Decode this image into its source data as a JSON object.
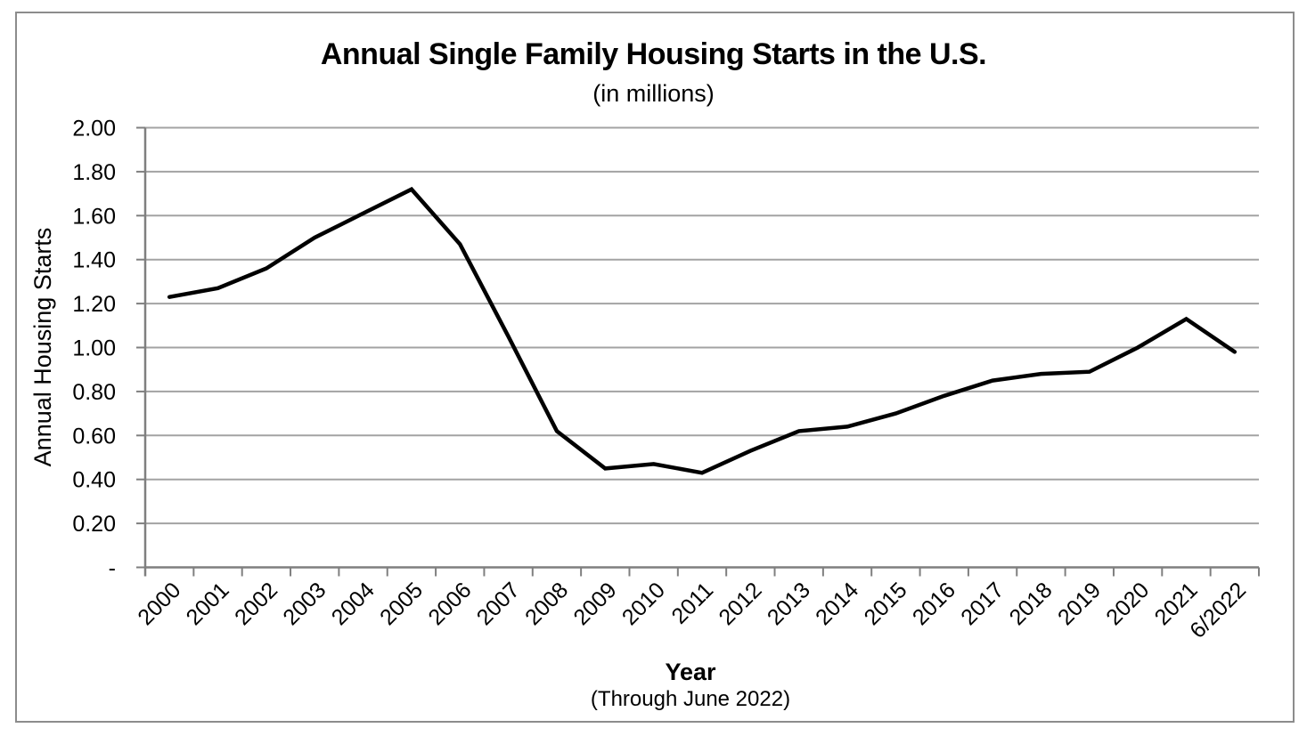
{
  "chart_data": {
    "type": "line",
    "title": "Annual Single Family Housing Starts in the U.S.",
    "subtitle": "(in millions)",
    "xlabel": "Year",
    "xlabel_note": "(Through June 2022)",
    "ylabel": "Annual Housing Starts",
    "categories": [
      "2000",
      "2001",
      "2002",
      "2003",
      "2004",
      "2005",
      "2006",
      "2007",
      "2008",
      "2009",
      "2010",
      "2011",
      "2012",
      "2013",
      "2014",
      "2015",
      "2016",
      "2017",
      "2018",
      "2019",
      "2020",
      "2021",
      "6/2022"
    ],
    "values": [
      1.23,
      1.27,
      1.36,
      1.5,
      1.61,
      1.72,
      1.47,
      1.05,
      0.62,
      0.45,
      0.47,
      0.43,
      0.53,
      0.62,
      0.64,
      0.7,
      0.78,
      0.85,
      0.88,
      0.89,
      1.0,
      1.13,
      0.98
    ],
    "ylim": [
      0,
      2.0
    ],
    "y_tick_step": 0.2,
    "y_ticks": [
      {
        "v": 0.0,
        "label": "-"
      },
      {
        "v": 0.2,
        "label": "0.20"
      },
      {
        "v": 0.4,
        "label": "0.40"
      },
      {
        "v": 0.6,
        "label": "0.60"
      },
      {
        "v": 0.8,
        "label": "0.80"
      },
      {
        "v": 1.0,
        "label": "1.00"
      },
      {
        "v": 1.2,
        "label": "1.20"
      },
      {
        "v": 1.4,
        "label": "1.40"
      },
      {
        "v": 1.6,
        "label": "1.60"
      },
      {
        "v": 1.8,
        "label": "1.80"
      },
      {
        "v": 2.0,
        "label": "2.00"
      }
    ],
    "grid": true,
    "legend": "none",
    "x_tick_label_rotation_deg": 45,
    "colors": {
      "line": "#000000",
      "grid": "#a3a3a3",
      "axis": "#7f7f7f",
      "frame": "#8c8c8c",
      "text": "#000000"
    }
  }
}
